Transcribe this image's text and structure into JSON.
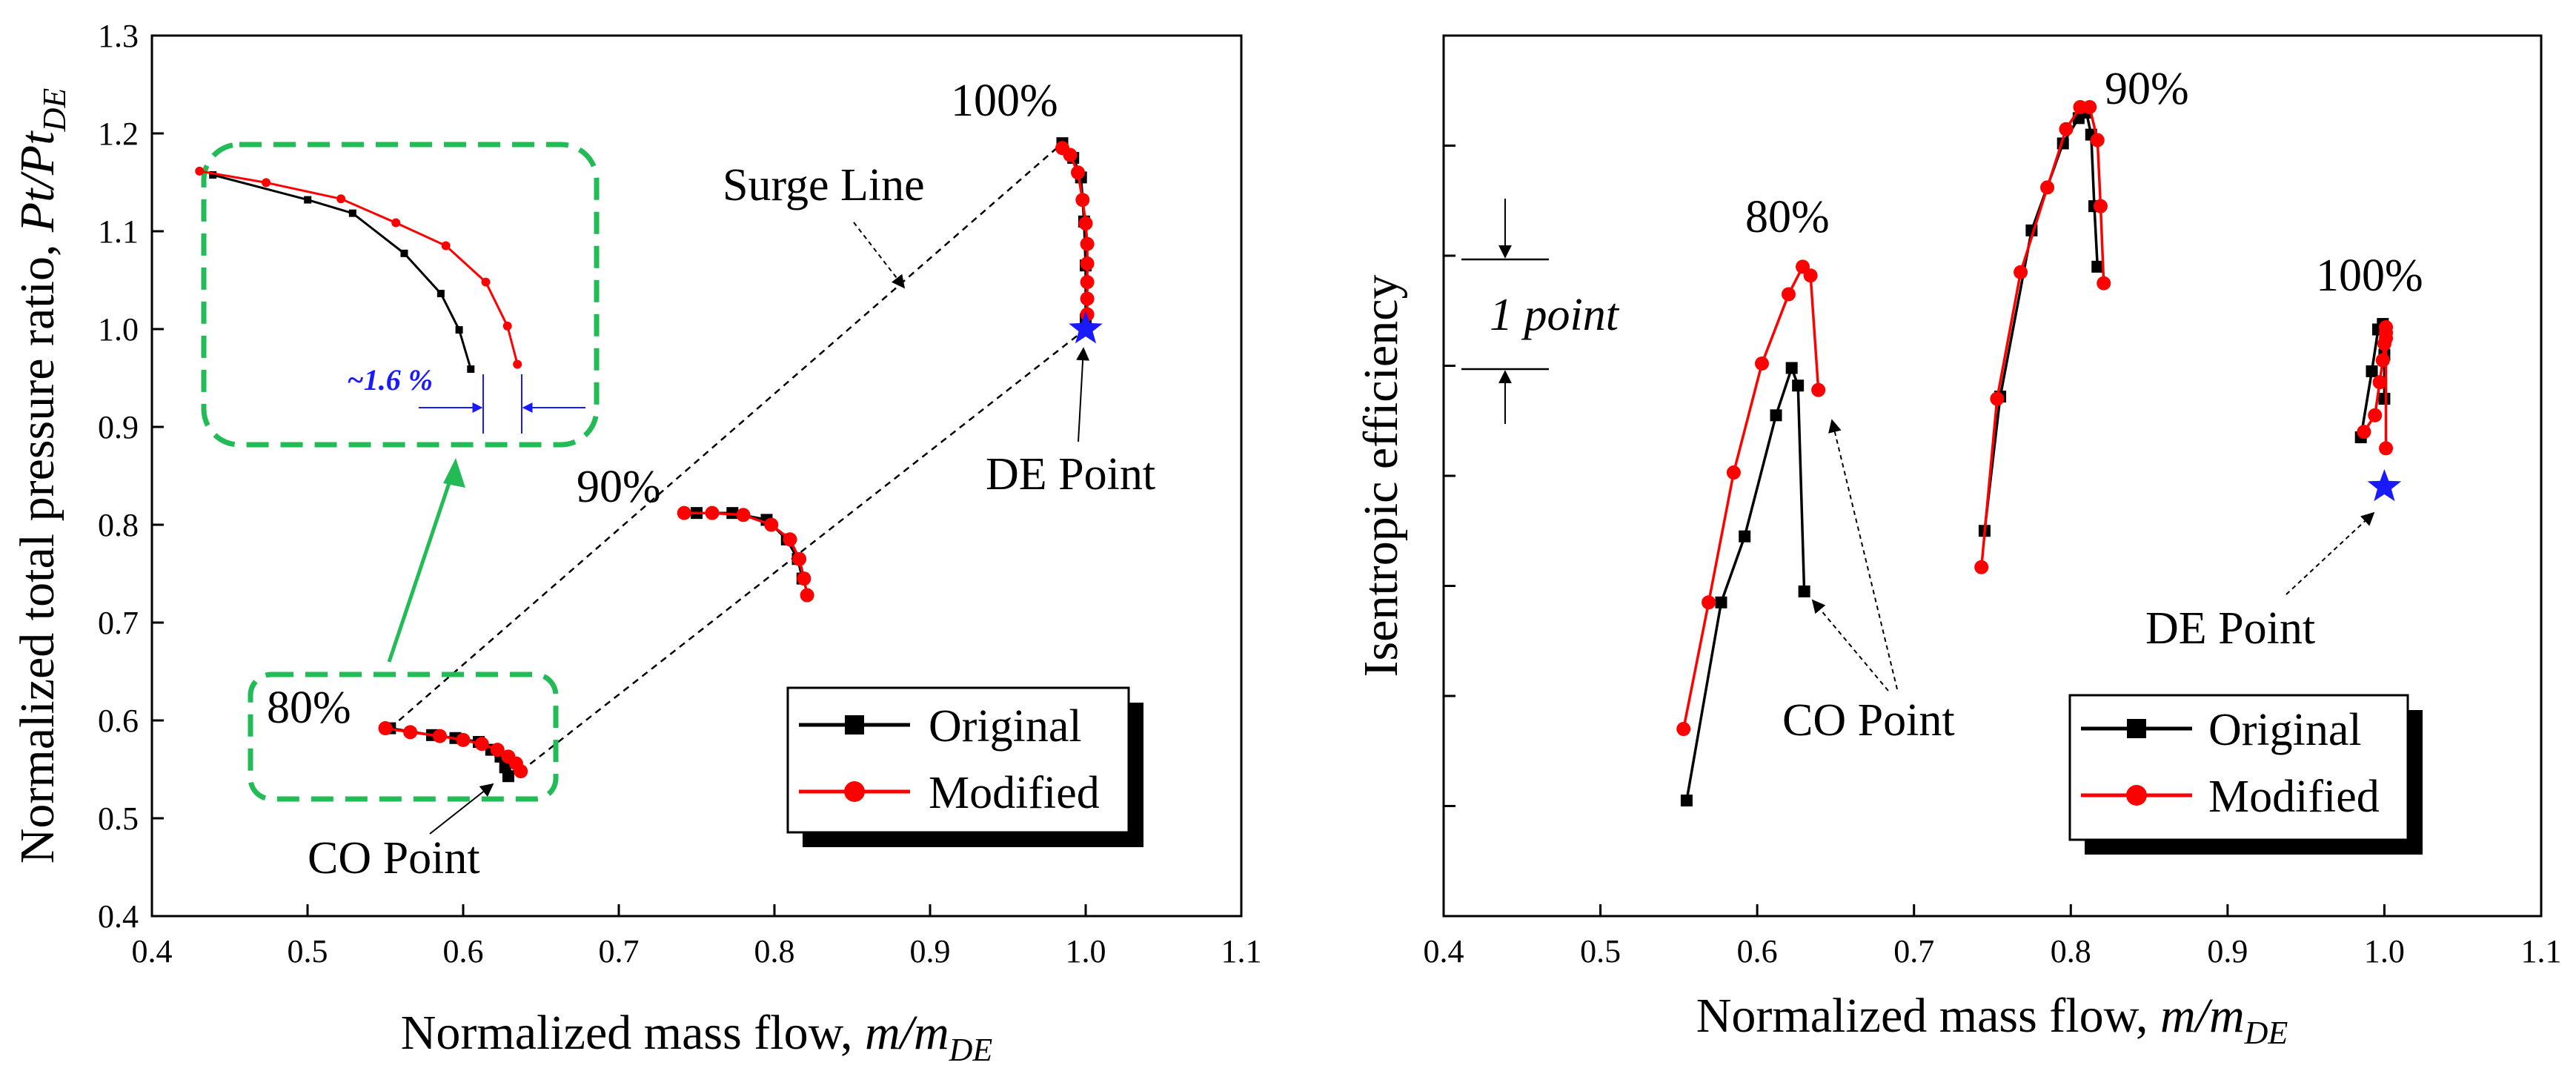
{
  "chart_data": [
    {
      "type": "line",
      "name": "pressure-ratio-map",
      "xlabel_prefix": "Normalized mass flow, ",
      "xlabel_var": "m/m",
      "xlabel_sub": "DE",
      "ylabel_prefix": "Normalized total pressure ratio, ",
      "ylabel_var": "Pt/Pt",
      "ylabel_sub": "DE",
      "xlim": [
        0.4,
        1.1
      ],
      "ylim": [
        0.4,
        1.3
      ],
      "xticks": [
        "0.4",
        "0.5",
        "0.6",
        "0.7",
        "0.8",
        "0.9",
        "1.0",
        "1.1"
      ],
      "yticks": [
        "0.4",
        "0.5",
        "0.6",
        "0.7",
        "0.8",
        "0.9",
        "1.0",
        "1.1",
        "1.2",
        "1.3"
      ],
      "legend": {
        "position": "bottom-right",
        "entries": [
          "Original",
          "Modified"
        ]
      },
      "series": [
        {
          "name": "Original",
          "color": "#000000",
          "marker": "square",
          "lines": [
            {
              "speed": "80%",
              "x": [
                0.553,
                0.58,
                0.595,
                0.61,
                0.618,
                0.624,
                0.627,
                0.629
              ],
              "y": [
                0.592,
                0.585,
                0.582,
                0.578,
                0.57,
                0.563,
                0.552,
                0.543
              ]
            },
            {
              "speed": "90%",
              "x": [
                0.75,
                0.773,
                0.795,
                0.808,
                0.815,
                0.818
              ],
              "y": [
                0.812,
                0.812,
                0.805,
                0.785,
                0.765,
                0.745
              ]
            },
            {
              "speed": "100%",
              "x": [
                0.985,
                0.992,
                0.997,
                0.999,
                1.0,
                1.0
              ],
              "y": [
                1.19,
                1.175,
                1.155,
                1.11,
                1.065,
                1.01
              ]
            }
          ]
        },
        {
          "name": "Modified",
          "color": "#ff0000",
          "marker": "circle",
          "lines": [
            {
              "speed": "80%",
              "x": [
                0.55,
                0.566,
                0.585,
                0.6,
                0.612,
                0.622,
                0.629,
                0.634,
                0.637
              ],
              "y": [
                0.592,
                0.588,
                0.584,
                0.58,
                0.576,
                0.57,
                0.563,
                0.556,
                0.548
              ]
            },
            {
              "speed": "90%",
              "x": [
                0.742,
                0.76,
                0.78,
                0.798,
                0.81,
                0.816,
                0.819,
                0.821
              ],
              "y": [
                0.812,
                0.812,
                0.81,
                0.8,
                0.785,
                0.765,
                0.745,
                0.728
              ]
            },
            {
              "speed": "100%",
              "x": [
                0.985,
                0.99,
                0.995,
                0.998,
                1.0,
                1.001,
                1.001,
                1.001,
                1.001,
                1.001
              ],
              "y": [
                1.185,
                1.178,
                1.16,
                1.132,
                1.108,
                1.087,
                1.067,
                1.048,
                1.031,
                1.015
              ]
            }
          ]
        }
      ],
      "design_point": {
        "x": 1.0,
        "y": 1.0,
        "color": "#1a1aff"
      },
      "surge_line": {
        "x": [
          0.553,
          0.985
        ],
        "y": [
          0.592,
          1.19
        ]
      },
      "choke_line": {
        "x": [
          0.637,
          1.0
        ],
        "y": [
          0.548,
          1.0
        ]
      },
      "annotations": {
        "speed_80": "80%",
        "speed_90": "90%",
        "speed_100": "100%",
        "surge_line": "Surge Line",
        "de_point": "DE Point",
        "co_point": "CO Point",
        "inset_delta": "~1.6 %"
      },
      "inset": {
        "original": {
          "x": [
            0.453,
            0.51,
            0.537,
            0.568,
            0.59,
            0.601,
            0.608
          ],
          "y": [
            1.158,
            1.132,
            1.118,
            1.076,
            1.034,
            0.996,
            0.955
          ]
        },
        "modified": {
          "x": [
            0.445,
            0.485,
            0.53,
            0.563,
            0.593,
            0.617,
            0.63,
            0.636
          ],
          "y": [
            1.162,
            1.15,
            1.133,
            1.108,
            1.084,
            1.046,
            1.0,
            0.96
          ]
        }
      }
    },
    {
      "type": "line",
      "name": "efficiency-map",
      "xlabel_prefix": "Normalized mass flow, ",
      "xlabel_var": "m/m",
      "xlabel_sub": "DE",
      "ylabel": "Isentropic efficiency",
      "xlim": [
        0.4,
        1.1
      ],
      "ylim": [
        0,
        8
      ],
      "yticks_values": [
        1,
        2,
        3,
        4,
        5,
        6,
        7
      ],
      "xticks": [
        "0.4",
        "0.5",
        "0.6",
        "0.7",
        "0.8",
        "0.9",
        "1.0",
        "1.1"
      ],
      "legend": {
        "position": "bottom-right",
        "entries": [
          "Original",
          "Modified"
        ]
      },
      "series": [
        {
          "name": "Original",
          "color": "#000000",
          "marker": "square",
          "lines": [
            {
              "speed": "80%",
              "x": [
                0.555,
                0.577,
                0.592,
                0.612,
                0.622,
                0.626,
                0.63
              ],
              "y": [
                1.05,
                2.85,
                3.45,
                4.55,
                4.98,
                4.82,
                2.95
              ]
            },
            {
              "speed": "90%",
              "x": [
                0.745,
                0.755,
                0.775,
                0.795,
                0.805,
                0.81,
                0.813,
                0.815,
                0.817
              ],
              "y": [
                3.5,
                4.72,
                6.23,
                7.02,
                7.25,
                7.3,
                7.1,
                6.45,
                5.9
              ]
            },
            {
              "speed": "100%",
              "x": [
                0.985,
                0.992,
                0.996,
                0.999,
                1.0,
                1.0
              ],
              "y": [
                4.35,
                4.95,
                5.33,
                5.38,
                5.1,
                4.7
              ]
            }
          ]
        },
        {
          "name": "Modified",
          "color": "#ff0000",
          "marker": "circle",
          "lines": [
            {
              "speed": "80%",
              "x": [
                0.553,
                0.569,
                0.585,
                0.603,
                0.62,
                0.629,
                0.634,
                0.639
              ],
              "y": [
                1.7,
                2.85,
                4.03,
                5.02,
                5.65,
                5.9,
                5.82,
                4.78
              ]
            },
            {
              "speed": "90%",
              "x": [
                0.743,
                0.753,
                0.768,
                0.785,
                0.797,
                0.806,
                0.812,
                0.817,
                0.819,
                0.821
              ],
              "y": [
                3.17,
                4.7,
                5.85,
                6.62,
                7.15,
                7.35,
                7.35,
                7.05,
                6.45,
                5.75
              ]
            },
            {
              "speed": "100%",
              "x": [
                0.987,
                0.994,
                0.997,
                0.999,
                1.0,
                1.001,
                1.001,
                1.001,
                1.001
              ],
              "y": [
                4.4,
                4.55,
                4.85,
                5.05,
                5.2,
                5.3,
                5.35,
                5.25,
                4.25
              ]
            }
          ]
        }
      ],
      "design_point": {
        "x": 1.0,
        "y": 3.9,
        "color": "#1a1aff"
      },
      "scale_bar": {
        "label": "1 point",
        "y_top": 6.0,
        "y_bottom": 5.0
      },
      "annotations": {
        "speed_80": "80%",
        "speed_90": "90%",
        "speed_100": "100%",
        "co_point": "CO Point",
        "de_point": "DE Point"
      }
    }
  ]
}
